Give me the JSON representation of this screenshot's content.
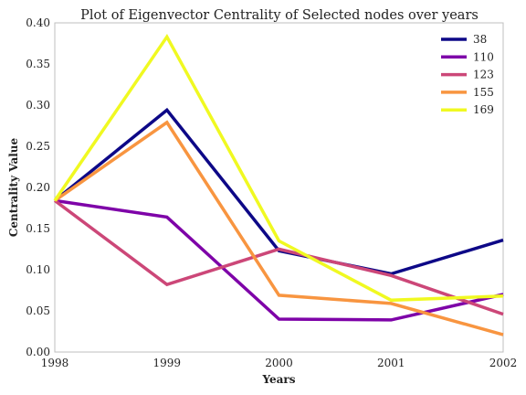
{
  "chart_data": {
    "type": "line",
    "title": "Plot of Eigenvector Centrality of Selected nodes over years",
    "xlabel": "Years",
    "ylabel": "Centrality Value",
    "x": [
      1998,
      1999,
      2000,
      2001,
      2002
    ],
    "xticks": [
      "1998",
      "1999",
      "2000",
      "2001",
      "2002"
    ],
    "xlim": [
      1998,
      2002
    ],
    "ylim": [
      0.0,
      0.4
    ],
    "yticks": [
      "0.00",
      "0.05",
      "0.10",
      "0.15",
      "0.20",
      "0.25",
      "0.30",
      "0.35",
      "0.40"
    ],
    "grid": false,
    "legend_position": "top-right",
    "series": [
      {
        "name": "38",
        "color": "#0d0887",
        "values": [
          0.184,
          0.294,
          0.123,
          0.095,
          0.136
        ]
      },
      {
        "name": "110",
        "color": "#7e03a8",
        "values": [
          0.184,
          0.164,
          0.04,
          0.039,
          0.07
        ]
      },
      {
        "name": "123",
        "color": "#cc4778",
        "values": [
          0.184,
          0.082,
          0.125,
          0.093,
          0.046
        ]
      },
      {
        "name": "155",
        "color": "#f89540",
        "values": [
          0.184,
          0.279,
          0.069,
          0.059,
          0.021
        ]
      },
      {
        "name": "169",
        "color": "#f0f921",
        "values": [
          0.184,
          0.383,
          0.135,
          0.063,
          0.068
        ]
      }
    ]
  }
}
